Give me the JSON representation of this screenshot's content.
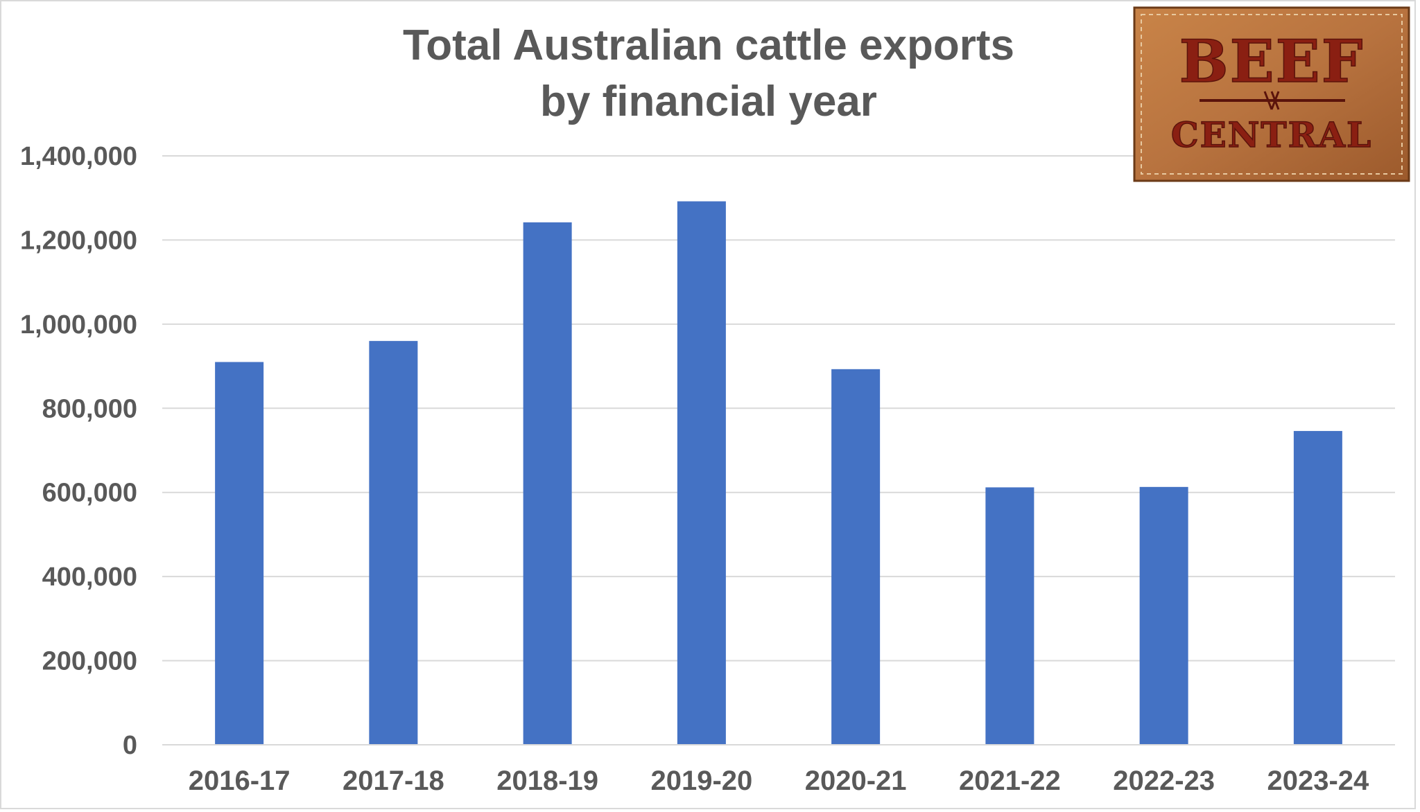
{
  "chart_data": {
    "type": "bar",
    "title": [
      "Total Australian cattle exports",
      "by financial year"
    ],
    "categories": [
      "2016-17",
      "2017-18",
      "2018-19",
      "2019-20",
      "2020-21",
      "2021-22",
      "2022-23",
      "2023-24"
    ],
    "values": [
      910000,
      960000,
      1242000,
      1292000,
      893000,
      612000,
      613000,
      746000
    ],
    "xlabel": "",
    "ylabel": "",
    "ylim": [
      0,
      1400000
    ],
    "yticks": [
      0,
      200000,
      400000,
      600000,
      800000,
      1000000,
      1200000,
      1400000
    ],
    "ytick_labels": [
      "0",
      "200,000",
      "400,000",
      "600,000",
      "800,000",
      "1,000,000",
      "1,200,000",
      "1,400,000"
    ],
    "grid": true,
    "legend": "none",
    "bar_color": "#4472c4"
  },
  "logo": {
    "line1": "BEEF",
    "line2": "CENTRAL",
    "leather_color": "#b8733f",
    "text_color": "#8a1f12"
  }
}
